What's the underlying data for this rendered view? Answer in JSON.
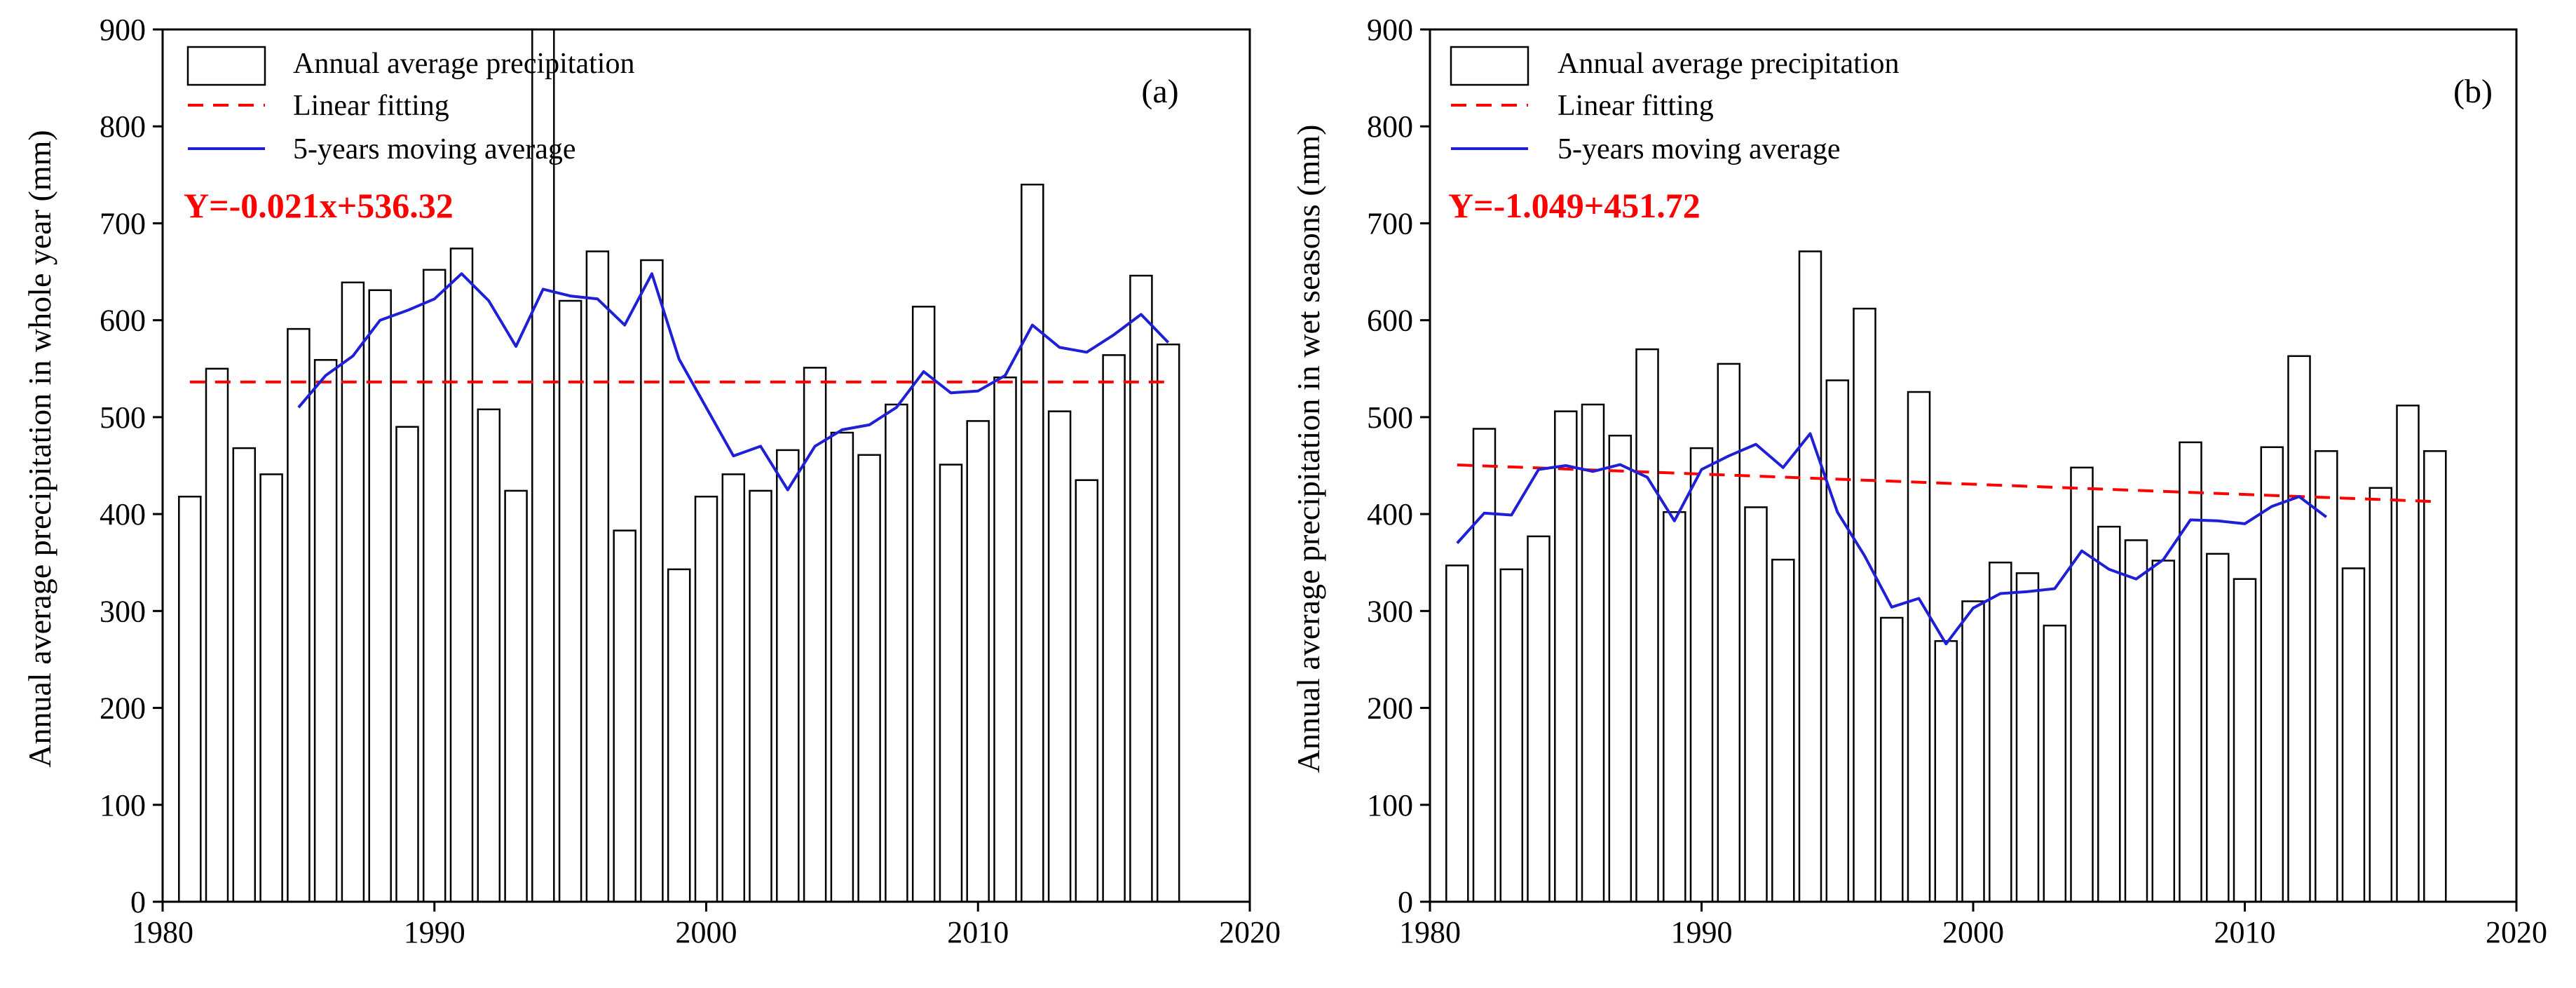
{
  "colors": {
    "bar_edge": "#000000",
    "bar_fill": "#ffffff",
    "linear": "#ff0000",
    "moving": "#1f1fd6",
    "equation": "#ff0000"
  },
  "chart_data": [
    {
      "type": "bar",
      "panel_label": "(a)",
      "ylabel": "Annual average precipitation in whole year (mm)",
      "xlim": [
        1980,
        2020
      ],
      "ylim": [
        0,
        900
      ],
      "x_ticks": [
        1980,
        1990,
        2000,
        2010,
        2020
      ],
      "y_ticks": [
        0,
        100,
        200,
        300,
        400,
        500,
        600,
        700,
        800,
        900
      ],
      "legend": {
        "position": "top-left",
        "entries": [
          "Annual average precipitation",
          "Linear fitting",
          "5-years moving average"
        ]
      },
      "equation": "Y=-0.021x+536.32",
      "x": [
        1981,
        1982,
        1983,
        1984,
        1985,
        1986,
        1987,
        1988,
        1989,
        1990,
        1991,
        1992,
        1993,
        1994,
        1995,
        1996,
        1997,
        1998,
        1999,
        2000,
        2001,
        2002,
        2003,
        2004,
        2005,
        2006,
        2007,
        2008,
        2009,
        2010,
        2011,
        2012,
        2013,
        2014,
        2015,
        2016,
        2017
      ],
      "series": [
        {
          "kind": "bar",
          "values": [
            418,
            550,
            468,
            441,
            591,
            559,
            639,
            631,
            490,
            652,
            674,
            508,
            424,
            900,
            620,
            671,
            383,
            662,
            343,
            418,
            441,
            424,
            466,
            551,
            484,
            461,
            513,
            614,
            451,
            496,
            541,
            740,
            506,
            435,
            564,
            646,
            575
          ]
        },
        {
          "kind": "line",
          "style": "dashed",
          "x": [
            1981,
            2017
          ],
          "values": [
            536.32,
            536.32
          ]
        },
        {
          "kind": "line",
          "style": "solid",
          "x": [
            1985,
            1986,
            1987,
            1988,
            1989,
            1990,
            1991,
            1992,
            1993,
            1994,
            1995,
            1996,
            1997,
            1998,
            1999,
            2000,
            2001,
            2002,
            2003,
            2004,
            2005,
            2006,
            2007,
            2008,
            2009,
            2010,
            2011,
            2012,
            2013,
            2014,
            2015,
            2016,
            2017
          ],
          "values": [
            510,
            543,
            563,
            600,
            610,
            622,
            648,
            620,
            573,
            632,
            625,
            622,
            595,
            648,
            560,
            510,
            460,
            470,
            425,
            470,
            487,
            492,
            510,
            547,
            525,
            527,
            543,
            595,
            572,
            567,
            585,
            606,
            577
          ]
        }
      ]
    },
    {
      "type": "bar",
      "panel_label": "(b)",
      "ylabel": "Annual average precipitation in wet seasons (mm)",
      "xlim": [
        1980,
        2020
      ],
      "ylim": [
        0,
        900
      ],
      "x_ticks": [
        1980,
        1990,
        2000,
        2010,
        2020
      ],
      "y_ticks": [
        0,
        100,
        200,
        300,
        400,
        500,
        600,
        700,
        800,
        900
      ],
      "legend": {
        "position": "top-left",
        "entries": [
          "Annual average precipitation",
          "Linear fitting",
          "5-years moving average"
        ]
      },
      "equation": "Y=-1.049+451.72",
      "x": [
        1981,
        1982,
        1983,
        1984,
        1985,
        1986,
        1987,
        1988,
        1989,
        1990,
        1991,
        1992,
        1993,
        1994,
        1995,
        1996,
        1997,
        1998,
        1999,
        2000,
        2001,
        2002,
        2003,
        2004,
        2005,
        2006,
        2007,
        2008,
        2009,
        2010,
        2011,
        2012,
        2013,
        2014,
        2015,
        2016,
        2017
      ],
      "series": [
        {
          "kind": "bar",
          "values": [
            347,
            488,
            343,
            377,
            506,
            513,
            481,
            570,
            402,
            468,
            555,
            407,
            353,
            671,
            538,
            612,
            293,
            526,
            269,
            310,
            350,
            339,
            285,
            448,
            387,
            373,
            352,
            474,
            359,
            333,
            469,
            563,
            465,
            344,
            427,
            512,
            465
          ]
        },
        {
          "kind": "line",
          "style": "dashed",
          "x": [
            1981,
            2017
          ],
          "values": [
            450.7,
            412.9
          ]
        },
        {
          "kind": "line",
          "style": "solid",
          "x": [
            1981,
            1982,
            1983,
            1984,
            1985,
            1986,
            1987,
            1988,
            1989,
            1990,
            1991,
            1992,
            1993,
            1994,
            1995,
            1996,
            1997,
            1998,
            1999,
            2000,
            2001,
            2002,
            2003,
            2004,
            2005,
            2006,
            2007,
            2008,
            2009,
            2010,
            2011,
            2012,
            2013
          ],
          "values": [
            370,
            401,
            399,
            446,
            450,
            444,
            451,
            438,
            393,
            446,
            460,
            472,
            448,
            483,
            402,
            357,
            304,
            313,
            266,
            303,
            318,
            320,
            323,
            362,
            343,
            333,
            353,
            394,
            393,
            390,
            408,
            418,
            397
          ]
        }
      ]
    }
  ]
}
